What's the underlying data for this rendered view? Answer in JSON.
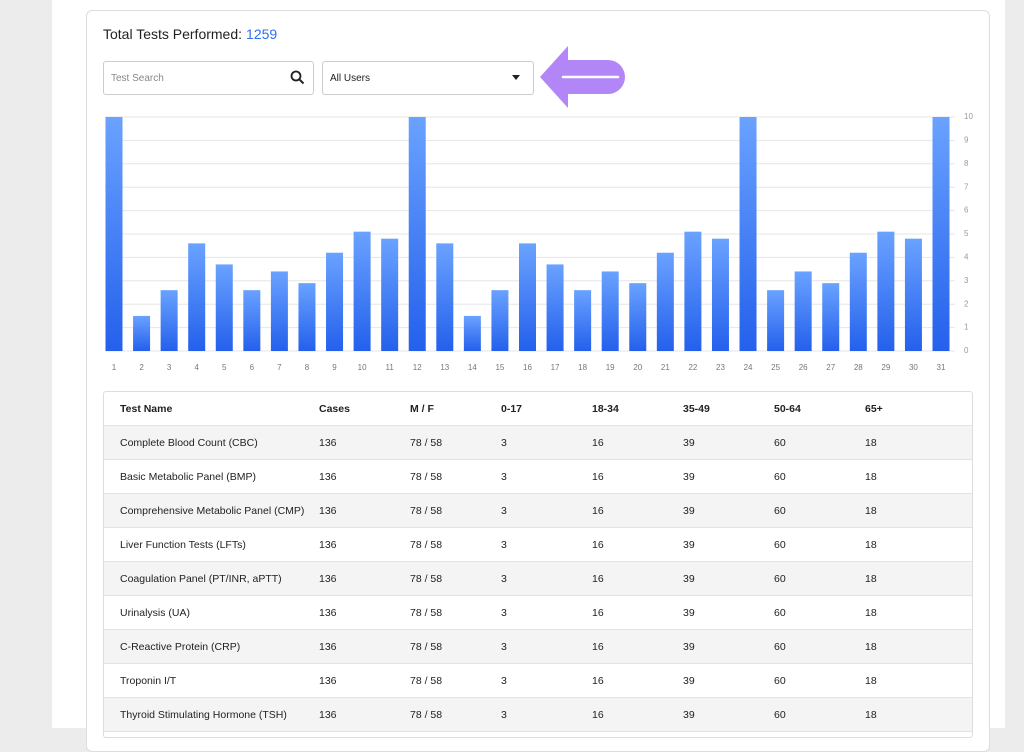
{
  "header": {
    "title": "Total Tests Performed:",
    "total": 1259
  },
  "controls": {
    "search_placeholder": "Test Search",
    "user_filter": "All Users"
  },
  "chart_data": {
    "type": "bar",
    "categories": [
      "1",
      "2",
      "3",
      "4",
      "5",
      "6",
      "7",
      "8",
      "9",
      "10",
      "11",
      "12",
      "13",
      "14",
      "15",
      "16",
      "17",
      "18",
      "19",
      "20",
      "21",
      "22",
      "23",
      "24",
      "25",
      "26",
      "27",
      "28",
      "29",
      "30",
      "31"
    ],
    "values": [
      10,
      1.5,
      2.6,
      4.6,
      3.7,
      2.6,
      3.4,
      2.9,
      4.2,
      5.1,
      4.8,
      10,
      4.6,
      1.5,
      2.6,
      4.6,
      3.7,
      2.6,
      3.4,
      2.9,
      4.2,
      5.1,
      4.8,
      10,
      2.6,
      3.4,
      2.9,
      4.2,
      5.1,
      4.8,
      10
    ],
    "color": "#3b7bf6",
    "ylim": [
      0,
      10
    ],
    "yticks": [
      0,
      1,
      2,
      3,
      4,
      5,
      6,
      7,
      8,
      9,
      10
    ],
    "grid": true
  },
  "table": {
    "headers": [
      "Test Name",
      "Cases",
      "M / F",
      "0-17",
      "18-34",
      "35-49",
      "50-64",
      "65+"
    ],
    "rows": [
      [
        "Complete Blood Count (CBC)",
        136,
        "78 / 58",
        3,
        16,
        39,
        60,
        18
      ],
      [
        "Basic Metabolic Panel (BMP)",
        136,
        "78 / 58",
        3,
        16,
        39,
        60,
        18
      ],
      [
        "Comprehensive Metabolic Panel (CMP)",
        136,
        "78 / 58",
        3,
        16,
        39,
        60,
        18
      ],
      [
        "Liver Function Tests (LFTs)",
        136,
        "78 / 58",
        3,
        16,
        39,
        60,
        18
      ],
      [
        "Coagulation Panel (PT/INR, aPTT)",
        136,
        "78 / 58",
        3,
        16,
        39,
        60,
        18
      ],
      [
        "Urinalysis (UA)",
        136,
        "78 / 58",
        3,
        16,
        39,
        60,
        18
      ],
      [
        "C-Reactive Protein (CRP)",
        136,
        "78 / 58",
        3,
        16,
        39,
        60,
        18
      ],
      [
        "Troponin I/T",
        136,
        "78 / 58",
        3,
        16,
        39,
        60,
        18
      ],
      [
        "Thyroid Stimulating Hormone (TSH)",
        136,
        "78 / 58",
        3,
        16,
        39,
        60,
        18
      ]
    ]
  }
}
